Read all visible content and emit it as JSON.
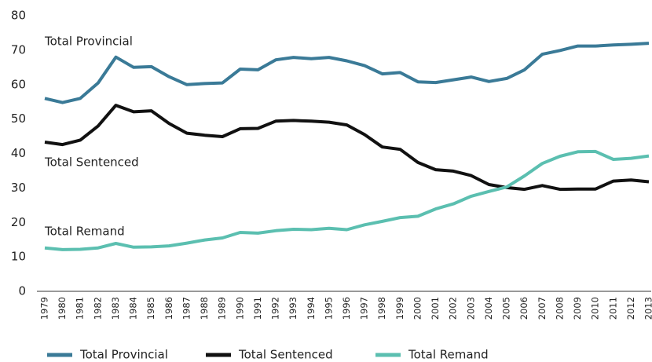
{
  "chart_data": {
    "type": "line",
    "categories": [
      "1979",
      "1980",
      "1981",
      "1982",
      "1983",
      "1984",
      "1985",
      "1986",
      "1987",
      "1988",
      "1989",
      "1990",
      "1991",
      "1992",
      "1993",
      "1994",
      "1995",
      "1996",
      "1997",
      "1998",
      "1999",
      "2000",
      "2001",
      "2002",
      "2003",
      "2004",
      "2005",
      "2006",
      "2007",
      "2008",
      "2009",
      "2010",
      "2011",
      "2012",
      "2013"
    ],
    "series": [
      {
        "name": "Total Provincial",
        "color": "#3a7a97",
        "values": [
          56,
          54.8,
          56,
          60.5,
          68,
          65,
          65.2,
          62.3,
          60,
          60.3,
          60.5,
          64.5,
          64.3,
          67.2,
          67.9,
          67.5,
          67.9,
          66.9,
          65.5,
          63.1,
          63.5,
          60.8,
          60.6,
          61.4,
          62.2,
          60.9,
          61.8,
          64.3,
          68.8,
          69.9,
          71.2,
          71.2,
          71.5,
          71.7,
          72
        ]
      },
      {
        "name": "Total Sentenced",
        "color": "#111111",
        "values": [
          43.3,
          42.6,
          43.9,
          48,
          54,
          52.1,
          52.4,
          48.7,
          45.9,
          45.3,
          44.9,
          47.2,
          47.3,
          49.4,
          49.6,
          49.4,
          49.1,
          48.3,
          45.5,
          41.9,
          41.2,
          37.4,
          35.3,
          34.9,
          33.6,
          31,
          30.1,
          29.6,
          30.7,
          29.6,
          29.7,
          29.7,
          32,
          32.3,
          31.8
        ]
      },
      {
        "name": "Total Remand",
        "color": "#5bbfb0",
        "values": [
          12.6,
          12.1,
          12.2,
          12.6,
          13.9,
          12.8,
          12.9,
          13.2,
          14,
          14.9,
          15.5,
          17.1,
          16.9,
          17.6,
          18,
          17.9,
          18.3,
          17.9,
          19.3,
          20.3,
          21.4,
          21.8,
          23.9,
          25.4,
          27.6,
          29,
          30.3,
          33.5,
          37.1,
          39.2,
          40.5,
          40.6,
          38.3,
          38.6,
          39.3
        ]
      }
    ],
    "annotations": [
      "Total Provincial",
      "Total Sentenced",
      "Total Remand"
    ],
    "ylim": [
      0,
      80
    ],
    "yticks": [
      0,
      10,
      20,
      30,
      40,
      50,
      60,
      70,
      80
    ],
    "grid": false,
    "legend": "bottom"
  }
}
